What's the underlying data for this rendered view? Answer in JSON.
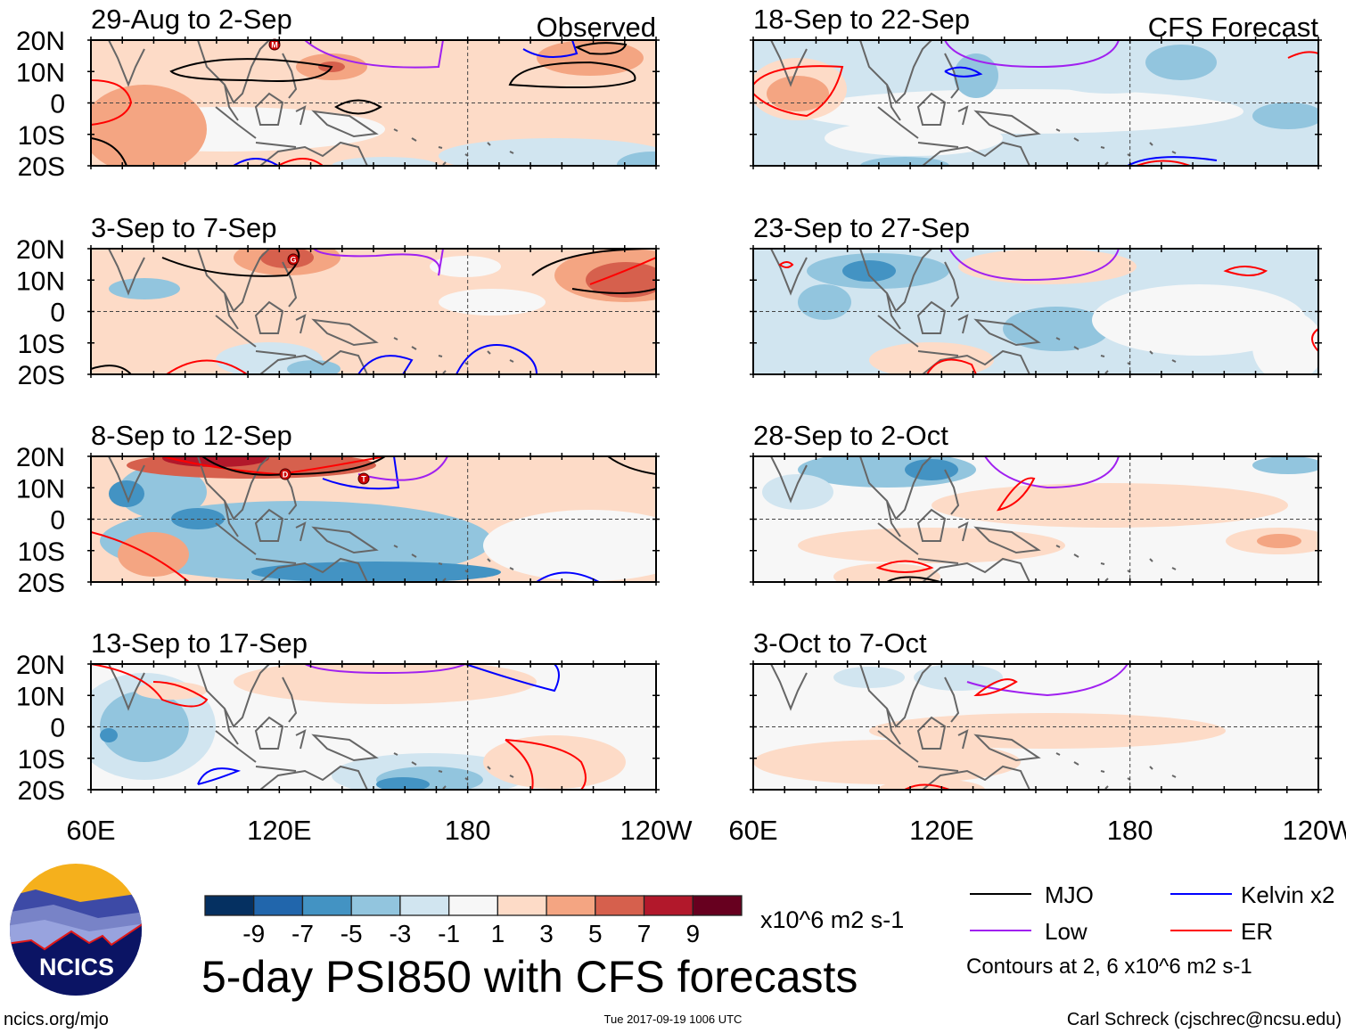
{
  "panels": [
    {
      "title": "29-Aug to 2-Sep",
      "label": "Observed",
      "storms": [
        "M"
      ]
    },
    {
      "title": "3-Sep to 7-Sep",
      "storms": [
        "G"
      ]
    },
    {
      "title": "8-Sep to 12-Sep",
      "storms": [
        "D",
        "T"
      ]
    },
    {
      "title": "13-Sep to 17-Sep",
      "storms": []
    },
    {
      "title": "18-Sep to 22-Sep",
      "label": "CFS Forecast",
      "storms": []
    },
    {
      "title": "23-Sep to 27-Sep",
      "storms": []
    },
    {
      "title": "28-Sep to 2-Oct",
      "storms": []
    },
    {
      "title": "3-Oct to 7-Oct",
      "storms": []
    }
  ],
  "lat_labels": [
    "20N",
    "10N",
    "0",
    "10S",
    "20S"
  ],
  "lon_labels": [
    "60E",
    "120E",
    "180",
    "120W"
  ],
  "colorbar": {
    "ticks": [
      "-9",
      "-7",
      "-5",
      "-3",
      "-1",
      "1",
      "3",
      "5",
      "7",
      "9"
    ],
    "colors": [
      "#053061",
      "#2166ac",
      "#4393c3",
      "#92c5de",
      "#d1e5f0",
      "#f7f7f7",
      "#fddbc7",
      "#f4a582",
      "#d6604d",
      "#b2182b",
      "#67001f"
    ],
    "units": "x10^6 m2 s-1"
  },
  "title": "5-day PSI850 with CFS forecasts",
  "legend": {
    "items": [
      {
        "label": "MJO",
        "color": "#000000"
      },
      {
        "label": "Low",
        "color": "#a020f0"
      },
      {
        "label": "Kelvin x2",
        "color": "#0000ff"
      },
      {
        "label": "ER",
        "color": "#ff0000"
      }
    ],
    "note": "Contours at 2, 6 x10^6 m2 s-1"
  },
  "footer": {
    "url": "ncics.org/mjo",
    "timestamp": "Tue 2017-09-19 1006 UTC",
    "author": "Carl Schreck (cjschrec@ncsu.edu)"
  },
  "logo": {
    "text": "NCICS"
  }
}
